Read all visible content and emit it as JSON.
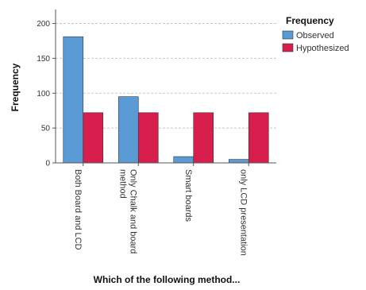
{
  "chart_data": {
    "type": "bar",
    "xlabel": "Which of the following method...",
    "ylabel": "Frequency",
    "categories": [
      [
        "Both Board and LCD"
      ],
      [
        "Only Chalk and board",
        "method"
      ],
      [
        "Smart boards"
      ],
      [
        "only LCD presentation"
      ]
    ],
    "series": [
      {
        "name": "Observed",
        "color": "#5b9bd5",
        "values": [
          181,
          95,
          9,
          5
        ]
      },
      {
        "name": "Hypothesized",
        "color": "#d81e4d",
        "values": [
          72,
          72,
          72,
          72
        ]
      }
    ],
    "ylim": [
      0,
      220
    ],
    "yticks": [
      0,
      50,
      100,
      150,
      200
    ],
    "grid": true,
    "legend": {
      "title": "Frequency",
      "placement": "top-right"
    }
  }
}
